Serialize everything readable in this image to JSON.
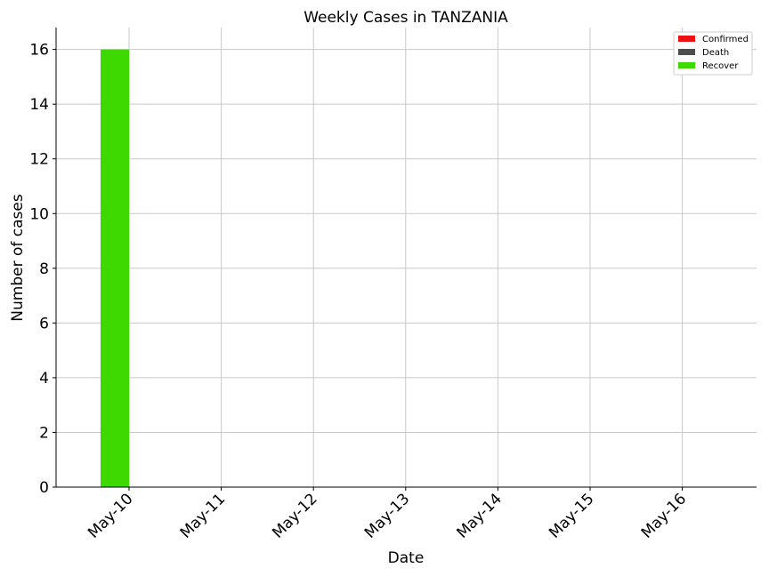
{
  "chart_data": {
    "type": "bar",
    "title": "Weekly Cases in TANZANIA",
    "xlabel": "Date",
    "ylabel": "Number of cases",
    "categories": [
      "May-10",
      "May-11",
      "May-12",
      "May-13",
      "May-14",
      "May-15",
      "May-16"
    ],
    "yticks": [
      "0",
      "2",
      "4",
      "6",
      "8",
      "10",
      "12",
      "14",
      "16"
    ],
    "ylim": [
      0,
      16.8
    ],
    "grid": true,
    "legend_position": "top-right",
    "series": [
      {
        "name": "Confirmed",
        "color": "#ee1111",
        "values": [
          0,
          0,
          0,
          0,
          0,
          0,
          0
        ]
      },
      {
        "name": "Death",
        "color": "#4d4d4d",
        "values": [
          0,
          0,
          0,
          0,
          0,
          0,
          0
        ]
      },
      {
        "name": "Recover",
        "color": "#3dd900",
        "values": [
          16,
          0,
          0,
          0,
          0,
          0,
          0
        ]
      }
    ]
  }
}
